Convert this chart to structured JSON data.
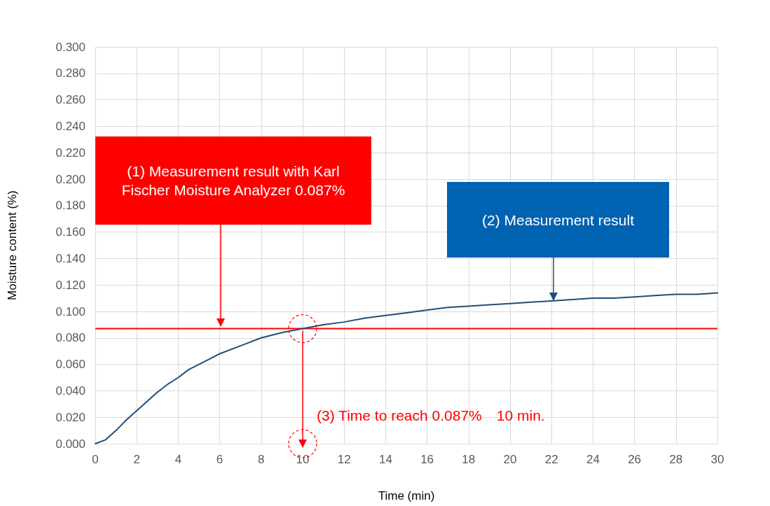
{
  "chart_data": {
    "type": "line",
    "xlabel": "Time (min)",
    "ylabel": "Moisture content (%)",
    "x": [
      0,
      0.5,
      1,
      1.5,
      2,
      2.5,
      3,
      3.5,
      4,
      4.5,
      5,
      5.5,
      6,
      7,
      8,
      9,
      10,
      11,
      12,
      13,
      14,
      15,
      16,
      17,
      18,
      19,
      20,
      21,
      22,
      23,
      24,
      25,
      26,
      27,
      28,
      29,
      30
    ],
    "series": [
      {
        "color": "#1f4e79",
        "values": [
          0,
          0.003,
          0.01,
          0.018,
          0.025,
          0.032,
          0.039,
          0.045,
          0.05,
          0.056,
          0.06,
          0.064,
          0.068,
          0.074,
          0.08,
          0.084,
          0.087,
          0.09,
          0.092,
          0.095,
          0.097,
          0.099,
          0.101,
          0.103,
          0.104,
          0.105,
          0.106,
          0.107,
          0.108,
          0.109,
          0.11,
          0.11,
          0.111,
          0.112,
          0.113,
          0.113,
          0.114
        ]
      }
    ],
    "xlim": [
      0,
      30
    ],
    "xticks": [
      0,
      2,
      4,
      6,
      8,
      10,
      12,
      14,
      16,
      18,
      20,
      22,
      24,
      26,
      28,
      30
    ],
    "ylim": [
      0,
      0.3
    ],
    "yticks": [
      {
        "value": 0,
        "label": "0.000"
      },
      {
        "value": 0.02,
        "label": "0.020"
      },
      {
        "value": 0.04,
        "label": "0.040"
      },
      {
        "value": 0.06,
        "label": "0.060"
      },
      {
        "value": 0.08,
        "label": "0.080"
      },
      {
        "value": 0.1,
        "label": "0.100"
      },
      {
        "value": 0.12,
        "label": "0.120"
      },
      {
        "value": 0.14,
        "label": "0.140"
      },
      {
        "value": 0.16,
        "label": "0.160"
      },
      {
        "value": 0.18,
        "label": "0.180"
      },
      {
        "value": 0.2,
        "label": "0.200"
      },
      {
        "value": 0.22,
        "label": "0.220"
      },
      {
        "value": 0.24,
        "label": "0.240"
      },
      {
        "value": 0.26,
        "label": "0.260"
      },
      {
        "value": 0.28,
        "label": "0.280"
      },
      {
        "value": 0.3,
        "label": "0.300"
      }
    ],
    "grid": true,
    "marker": "none",
    "line_style": "solid",
    "ref_lines": [
      {
        "axis": "y",
        "value": 0.087,
        "color": "#ff0000"
      }
    ],
    "annotations": [
      "(1) Measurement result with Karl Fischer Moisture Analyzer 0.087%",
      "(2) Measurement result",
      {
        "text": "(3) Time to reach 0.087%　10 min.",
        "x": 10,
        "y": 0
      }
    ]
  }
}
